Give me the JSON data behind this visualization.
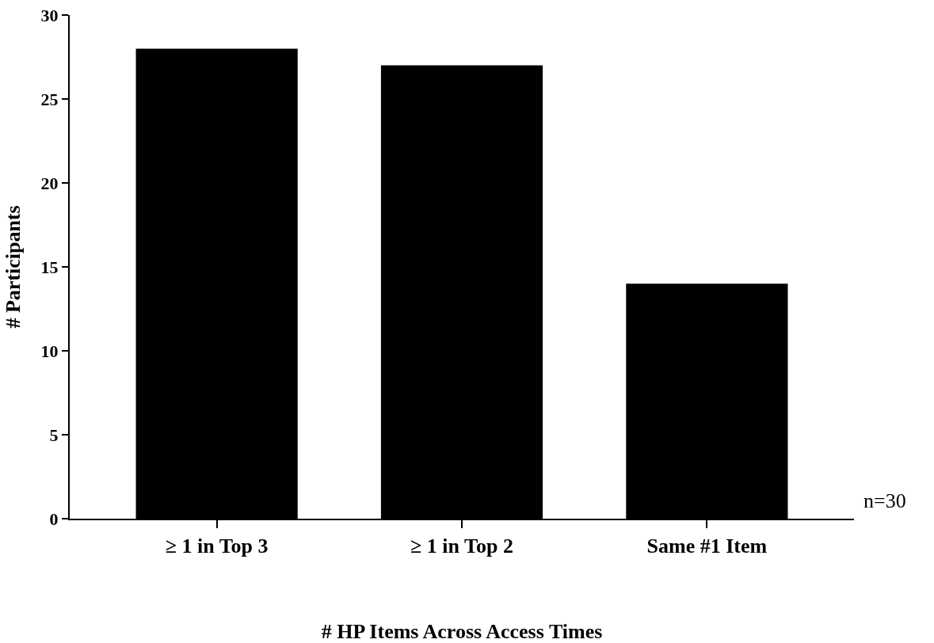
{
  "chart_data": {
    "type": "bar",
    "xlabel": "# HP Items Across Access Times",
    "ylabel": "# Participants",
    "categories": [
      "≥ 1 in Top 3",
      "≥ 1 in Top 2",
      "Same #1 Item"
    ],
    "values": [
      28,
      27,
      14
    ],
    "color": "#000000",
    "ylim": [
      0,
      30
    ],
    "yticks": [
      0,
      5,
      10,
      15,
      20,
      25,
      30
    ],
    "grid": false,
    "annotations": [
      "n=30"
    ]
  }
}
